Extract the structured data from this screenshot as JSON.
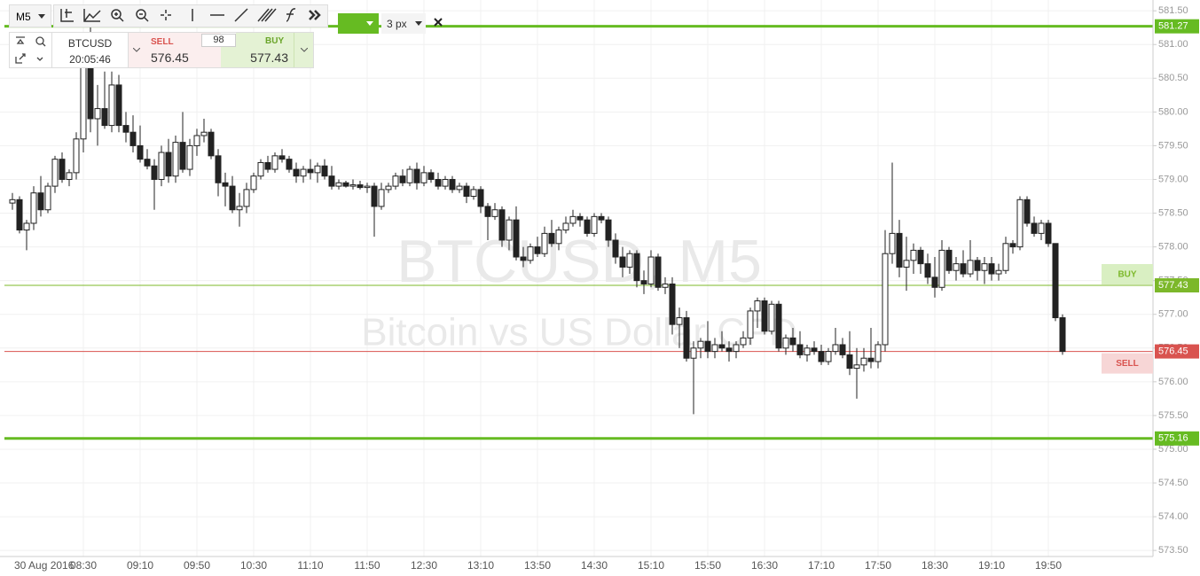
{
  "toolbar": {
    "timeframe": "M5",
    "line_width": "3 px"
  },
  "panel": {
    "symbol": "BTCUSD",
    "time": "20:05:46",
    "sell_label": "SELL",
    "sell": 576.45,
    "spread": 98,
    "buy_label": "BUY",
    "buy": 577.43
  },
  "chart_data": {
    "type": "candlestick",
    "title": "BTCUSD, M5",
    "subtitle": "Bitcoin vs US Dollar CFD",
    "date_label": "30 Aug 2016",
    "up_color": "#ffffff",
    "down_color": "#222222",
    "grid": true,
    "ylim": [
      573.41,
      581.66
    ],
    "yticks": [
      {
        "value": 581.5,
        "label": "581.50"
      },
      {
        "value": 581,
        "label": "581.00"
      },
      {
        "value": 580.5,
        "label": "580.50"
      },
      {
        "value": 580,
        "label": "580.00"
      },
      {
        "value": 579.5,
        "label": "579.50"
      },
      {
        "value": 579,
        "label": "579.00"
      },
      {
        "value": 578.5,
        "label": "578.50"
      },
      {
        "value": 578,
        "label": "578.00"
      },
      {
        "value": 577.5,
        "label": "577.50"
      },
      {
        "value": 577,
        "label": "577.00"
      },
      {
        "value": 576.5,
        "label": "576.50"
      },
      {
        "value": 576,
        "label": "576.00"
      },
      {
        "value": 575.5,
        "label": "575.50"
      },
      {
        "value": 575,
        "label": "575.00"
      },
      {
        "value": 574.5,
        "label": "574.50"
      },
      {
        "value": 574,
        "label": "574.00"
      },
      {
        "value": 573.5,
        "label": "573.50"
      }
    ],
    "xticks": [
      "08:30",
      "09:10",
      "09:50",
      "10:30",
      "11:10",
      "11:50",
      "12:30",
      "13:10",
      "13:50",
      "14:30",
      "15:10",
      "15:50",
      "16:30",
      "17:10",
      "17:50",
      "18:30",
      "19:10",
      "19:50"
    ],
    "levels": [
      {
        "value": 581.27,
        "color": "#66bb22"
      },
      {
        "value": 577.43,
        "color": "#7cb82a"
      },
      {
        "value": 576.45,
        "color": "#d9534f"
      },
      {
        "value": 575.16,
        "color": "#66bb22"
      }
    ],
    "tags": [
      {
        "text": "BUY",
        "level": 1
      },
      {
        "text": "SELL",
        "level": 2
      }
    ],
    "x": [
      "07:40",
      "07:45",
      "07:50",
      "07:55",
      "08:00",
      "08:05",
      "08:10",
      "08:15",
      "08:20",
      "08:25",
      "08:30",
      "08:35",
      "08:40",
      "08:45",
      "08:50",
      "08:55",
      "09:00",
      "09:05",
      "09:10",
      "09:15",
      "09:20",
      "09:25",
      "09:30",
      "09:35",
      "09:40",
      "09:45",
      "09:50",
      "09:55",
      "10:00",
      "10:05",
      "10:10",
      "10:15",
      "10:20",
      "10:25",
      "10:30",
      "10:35",
      "10:40",
      "10:45",
      "10:50",
      "10:55",
      "11:00",
      "11:05",
      "11:10",
      "11:15",
      "11:20",
      "11:25",
      "11:30",
      "11:35",
      "11:40",
      "11:45",
      "11:50",
      "11:55",
      "12:00",
      "12:05",
      "12:10",
      "12:15",
      "12:20",
      "12:25",
      "12:30",
      "12:35",
      "12:40",
      "12:45",
      "12:50",
      "12:55",
      "13:00",
      "13:05",
      "13:10",
      "13:15",
      "13:20",
      "13:25",
      "13:30",
      "13:35",
      "13:40",
      "13:45",
      "13:50",
      "13:55",
      "14:00",
      "14:05",
      "14:10",
      "14:15",
      "14:20",
      "14:25",
      "14:30",
      "14:35",
      "14:40",
      "14:45",
      "14:50",
      "14:55",
      "15:00",
      "15:05",
      "15:10",
      "15:15",
      "15:20",
      "15:25",
      "15:30",
      "15:35",
      "15:40",
      "15:45",
      "15:50",
      "15:55",
      "16:00",
      "16:05",
      "16:10",
      "16:15",
      "16:20",
      "16:25",
      "16:30",
      "16:35",
      "16:40",
      "16:45",
      "16:50",
      "16:55",
      "17:00",
      "17:05",
      "17:10",
      "17:15",
      "17:20",
      "17:25",
      "17:30",
      "17:35",
      "17:40",
      "17:45",
      "17:50",
      "17:55",
      "18:00",
      "18:05",
      "18:10",
      "18:15",
      "18:20",
      "18:25",
      "18:30",
      "18:35",
      "18:40",
      "18:45",
      "18:50",
      "18:55",
      "19:00",
      "19:05",
      "19:10",
      "19:15",
      "19:20",
      "19:25",
      "19:30",
      "19:35",
      "19:40",
      "19:45",
      "19:50",
      "19:55",
      "20:00"
    ],
    "ohlc": [
      [
        578.65,
        578.8,
        578.55,
        578.7
      ],
      [
        578.7,
        578.75,
        578.2,
        578.25
      ],
      [
        578.25,
        578.4,
        577.95,
        578.35
      ],
      [
        578.35,
        578.9,
        578.25,
        578.8
      ],
      [
        578.8,
        579.05,
        578.45,
        578.55
      ],
      [
        578.55,
        578.95,
        578.5,
        578.9
      ],
      [
        578.9,
        579.35,
        578.8,
        579.3
      ],
      [
        579.3,
        579.4,
        578.95,
        579.0
      ],
      [
        579.0,
        579.15,
        578.9,
        579.1
      ],
      [
        579.1,
        579.7,
        579.0,
        579.6
      ],
      [
        579.6,
        581.1,
        579.4,
        580.8
      ],
      [
        580.8,
        581.3,
        579.7,
        579.9
      ],
      [
        579.9,
        580.4,
        579.5,
        580.05
      ],
      [
        580.05,
        580.6,
        579.75,
        579.8
      ],
      [
        579.8,
        580.6,
        579.7,
        580.4
      ],
      [
        580.4,
        580.55,
        579.7,
        579.8
      ],
      [
        579.8,
        580.0,
        579.55,
        579.7
      ],
      [
        579.7,
        579.95,
        579.4,
        579.5
      ],
      [
        579.5,
        579.8,
        579.25,
        579.3
      ],
      [
        579.3,
        579.45,
        579.15,
        579.2
      ],
      [
        579.2,
        579.3,
        578.55,
        579.0
      ],
      [
        579.0,
        579.5,
        578.9,
        579.4
      ],
      [
        579.4,
        579.6,
        578.95,
        579.05
      ],
      [
        579.05,
        579.65,
        578.95,
        579.55
      ],
      [
        579.55,
        580.0,
        579.1,
        579.15
      ],
      [
        579.15,
        579.6,
        579.05,
        579.5
      ],
      [
        579.5,
        579.75,
        579.35,
        579.65
      ],
      [
        579.65,
        579.9,
        579.55,
        579.7
      ],
      [
        579.7,
        579.75,
        579.3,
        579.35
      ],
      [
        579.35,
        579.45,
        578.75,
        578.95
      ],
      [
        578.95,
        579.1,
        578.6,
        578.9
      ],
      [
        578.9,
        579.05,
        578.5,
        578.55
      ],
      [
        578.55,
        578.8,
        578.3,
        578.6
      ],
      [
        578.6,
        578.95,
        578.5,
        578.85
      ],
      [
        578.85,
        579.1,
        578.8,
        579.05
      ],
      [
        579.05,
        579.3,
        579.0,
        579.25
      ],
      [
        579.25,
        579.35,
        579.1,
        579.15
      ],
      [
        579.15,
        579.4,
        579.1,
        579.35
      ],
      [
        579.35,
        579.45,
        579.25,
        579.3
      ],
      [
        579.3,
        579.35,
        579.1,
        579.15
      ],
      [
        579.15,
        579.25,
        578.95,
        579.05
      ],
      [
        579.05,
        579.2,
        578.95,
        579.15
      ],
      [
        579.15,
        579.3,
        579.0,
        579.1
      ],
      [
        579.1,
        579.25,
        578.95,
        579.2
      ],
      [
        579.2,
        579.3,
        579.0,
        579.05
      ],
      [
        579.05,
        579.2,
        578.85,
        578.9
      ],
      [
        578.9,
        579.0,
        578.85,
        578.95
      ],
      [
        578.95,
        578.98,
        578.88,
        578.9
      ],
      [
        578.9,
        579.0,
        578.85,
        578.92
      ],
      [
        578.92,
        578.98,
        578.85,
        578.88
      ],
      [
        578.88,
        578.95,
        578.8,
        578.9
      ],
      [
        578.9,
        578.95,
        578.15,
        578.6
      ],
      [
        578.6,
        578.95,
        578.55,
        578.85
      ],
      [
        578.85,
        578.95,
        578.8,
        578.9
      ],
      [
        578.9,
        579.1,
        578.85,
        579.05
      ],
      [
        579.05,
        579.15,
        578.9,
        578.95
      ],
      [
        578.95,
        579.2,
        578.9,
        579.15
      ],
      [
        579.15,
        579.25,
        578.85,
        578.95
      ],
      [
        578.95,
        579.2,
        578.9,
        579.1
      ],
      [
        579.1,
        579.15,
        578.95,
        579.0
      ],
      [
        579.0,
        579.1,
        578.85,
        578.9
      ],
      [
        578.9,
        579.05,
        578.85,
        579.0
      ],
      [
        579.0,
        579.05,
        578.8,
        578.85
      ],
      [
        578.85,
        578.95,
        578.8,
        578.9
      ],
      [
        578.9,
        578.95,
        578.65,
        578.75
      ],
      [
        578.75,
        578.9,
        578.7,
        578.85
      ],
      [
        578.85,
        578.9,
        578.5,
        578.6
      ],
      [
        578.6,
        578.65,
        578.1,
        578.45
      ],
      [
        578.45,
        578.65,
        578.4,
        578.55
      ],
      [
        578.55,
        578.6,
        578.0,
        578.1
      ],
      [
        578.1,
        578.45,
        577.95,
        578.4
      ],
      [
        578.4,
        578.6,
        577.8,
        577.85
      ],
      [
        577.85,
        578.0,
        577.7,
        577.8
      ],
      [
        577.8,
        578.05,
        577.75,
        578.0
      ],
      [
        578.0,
        578.15,
        577.85,
        577.9
      ],
      [
        577.9,
        578.3,
        577.85,
        578.2
      ],
      [
        578.2,
        578.4,
        578.0,
        578.05
      ],
      [
        578.05,
        578.3,
        577.95,
        578.25
      ],
      [
        578.25,
        578.45,
        578.2,
        578.35
      ],
      [
        578.35,
        578.55,
        578.3,
        578.45
      ],
      [
        578.45,
        578.5,
        578.3,
        578.4
      ],
      [
        578.4,
        578.45,
        578.15,
        578.2
      ],
      [
        578.2,
        578.5,
        578.15,
        578.45
      ],
      [
        578.45,
        578.5,
        578.35,
        578.4
      ],
      [
        578.4,
        578.45,
        578.0,
        578.1
      ],
      [
        578.1,
        578.2,
        577.75,
        577.85
      ],
      [
        577.85,
        578.0,
        577.55,
        577.7
      ],
      [
        577.7,
        577.95,
        577.6,
        577.9
      ],
      [
        577.9,
        577.95,
        577.4,
        577.5
      ],
      [
        577.5,
        577.65,
        577.3,
        577.45
      ],
      [
        577.45,
        577.95,
        577.4,
        577.85
      ],
      [
        577.85,
        577.9,
        577.35,
        577.4
      ],
      [
        577.4,
        577.55,
        577.3,
        577.45
      ],
      [
        577.45,
        577.55,
        576.7,
        576.85
      ],
      [
        576.85,
        577.1,
        576.5,
        576.95
      ],
      [
        576.95,
        577.05,
        576.3,
        576.35
      ],
      [
        576.35,
        576.6,
        575.52,
        576.5
      ],
      [
        576.5,
        576.65,
        576.35,
        576.6
      ],
      [
        576.6,
        576.9,
        576.35,
        576.45
      ],
      [
        576.45,
        576.65,
        576.35,
        576.55
      ],
      [
        576.55,
        576.75,
        576.45,
        576.5
      ],
      [
        576.5,
        576.6,
        576.3,
        576.45
      ],
      [
        576.45,
        576.6,
        576.35,
        576.55
      ],
      [
        576.55,
        576.75,
        576.5,
        576.65
      ],
      [
        576.65,
        577.1,
        576.55,
        577.05
      ],
      [
        577.05,
        577.25,
        576.8,
        577.2
      ],
      [
        577.2,
        577.25,
        576.7,
        576.75
      ],
      [
        576.75,
        577.2,
        576.7,
        577.15
      ],
      [
        577.15,
        577.2,
        576.45,
        576.5
      ],
      [
        576.5,
        576.7,
        576.4,
        576.65
      ],
      [
        576.65,
        576.8,
        576.45,
        576.55
      ],
      [
        576.55,
        576.75,
        576.35,
        576.4
      ],
      [
        576.4,
        576.55,
        576.3,
        576.5
      ],
      [
        576.5,
        576.6,
        576.4,
        576.45
      ],
      [
        576.45,
        576.55,
        576.25,
        576.3
      ],
      [
        576.3,
        576.5,
        576.25,
        576.45
      ],
      [
        576.45,
        576.8,
        576.4,
        576.55
      ],
      [
        576.55,
        576.65,
        576.35,
        576.4
      ],
      [
        576.4,
        576.75,
        576.1,
        576.2
      ],
      [
        576.2,
        576.5,
        575.75,
        576.25
      ],
      [
        576.25,
        576.5,
        576.15,
        576.35
      ],
      [
        576.35,
        576.8,
        576.2,
        576.3
      ],
      [
        576.3,
        576.6,
        576.2,
        576.55
      ],
      [
        576.55,
        578.25,
        576.45,
        577.9
      ],
      [
        577.9,
        579.25,
        577.75,
        578.2
      ],
      [
        578.2,
        578.4,
        577.55,
        577.7
      ],
      [
        577.7,
        578.15,
        577.35,
        577.8
      ],
      [
        577.8,
        578.05,
        577.6,
        577.95
      ],
      [
        577.95,
        578.0,
        577.6,
        577.75
      ],
      [
        577.75,
        577.9,
        577.45,
        577.55
      ],
      [
        577.55,
        577.85,
        577.25,
        577.4
      ],
      [
        577.4,
        578.1,
        577.35,
        577.95
      ],
      [
        577.95,
        578.0,
        577.6,
        577.65
      ],
      [
        577.65,
        577.85,
        577.5,
        577.75
      ],
      [
        577.75,
        577.95,
        577.55,
        577.6
      ],
      [
        577.6,
        578.1,
        577.55,
        577.8
      ],
      [
        577.8,
        577.85,
        577.5,
        577.65
      ],
      [
        577.65,
        577.85,
        577.45,
        577.75
      ],
      [
        577.75,
        577.85,
        577.5,
        577.6
      ],
      [
        577.6,
        577.75,
        577.5,
        577.65
      ],
      [
        577.65,
        578.15,
        577.6,
        578.05
      ],
      [
        578.05,
        578.1,
        577.9,
        578.0
      ],
      [
        578.0,
        578.75,
        577.95,
        578.7
      ],
      [
        578.7,
        578.75,
        578.3,
        578.35
      ],
      [
        578.35,
        578.45,
        578.15,
        578.2
      ],
      [
        578.2,
        578.4,
        578.1,
        578.35
      ],
      [
        578.35,
        578.4,
        578.0,
        578.05
      ],
      [
        578.05,
        578.05,
        576.9,
        576.95
      ],
      [
        576.95,
        577.0,
        576.4,
        576.45
      ]
    ]
  }
}
